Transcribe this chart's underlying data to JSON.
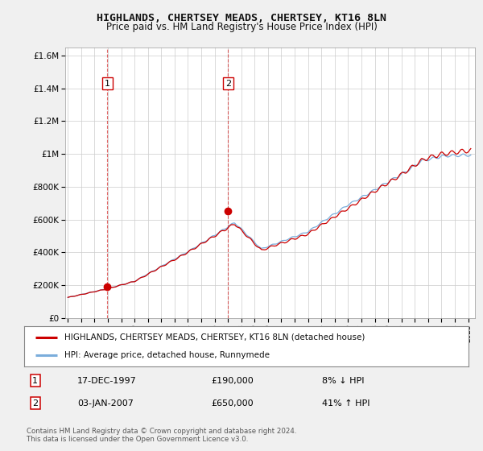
{
  "title": "HIGHLANDS, CHERTSEY MEADS, CHERTSEY, KT16 8LN",
  "subtitle": "Price paid vs. HM Land Registry's House Price Index (HPI)",
  "ylim": [
    0,
    1650000
  ],
  "yticks": [
    0,
    200000,
    400000,
    600000,
    800000,
    1000000,
    1200000,
    1400000,
    1600000
  ],
  "ytick_labels": [
    "£0",
    "£200K",
    "£400K",
    "£600K",
    "£800K",
    "£1M",
    "£1.2M",
    "£1.4M",
    "£1.6M"
  ],
  "xlim_start": 1994.8,
  "xlim_end": 2025.5,
  "sale1_x": 1997.96,
  "sale1_y": 190000,
  "sale1_label": "1",
  "sale1_date": "17-DEC-1997",
  "sale1_price": "£190,000",
  "sale1_hpi": "8% ↓ HPI",
  "sale2_x": 2007.01,
  "sale2_y": 650000,
  "sale2_label": "2",
  "sale2_date": "03-JAN-2007",
  "sale2_price": "£650,000",
  "sale2_hpi": "41% ↑ HPI",
  "legend_line1": "HIGHLANDS, CHERTSEY MEADS, CHERTSEY, KT16 8LN (detached house)",
  "legend_line2": "HPI: Average price, detached house, Runnymede",
  "footer": "Contains HM Land Registry data © Crown copyright and database right 2024.\nThis data is licensed under the Open Government Licence v3.0.",
  "line_color_red": "#cc0000",
  "line_color_blue": "#7aaddb",
  "bg_color": "#f0f0f0",
  "plot_bg": "#ffffff",
  "grid_color": "#cccccc"
}
